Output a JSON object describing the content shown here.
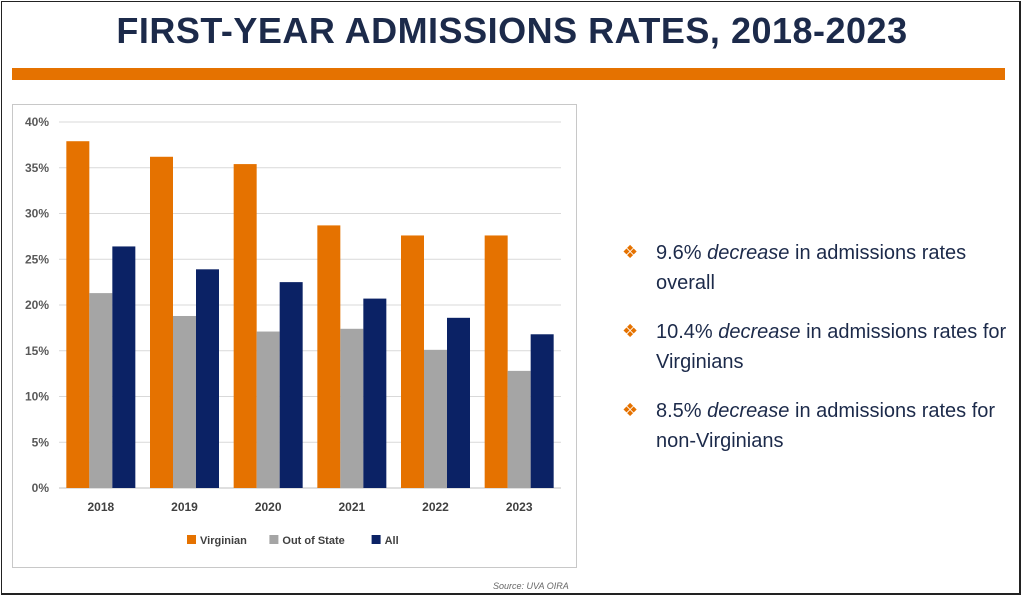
{
  "title": "FIRST-YEAR ADMISSIONS RATES, 2018-2023",
  "source": "Source:  UVA OIRA",
  "bullets": [
    {
      "lead": "9.6% ",
      "emph": "decrease",
      "rest": " in admissions rates overall"
    },
    {
      "lead": "10.4% ",
      "emph": "decrease",
      "rest": " in admissions rates for Virginians"
    },
    {
      "lead": "8.5% ",
      "emph": "decrease",
      "rest": " in admissions rates for non-Virginians"
    }
  ],
  "bullet_icon": "diamond-cluster-icon",
  "colors": {
    "accent": "#e57200",
    "navy": "#0b2265",
    "gray": "#a5a5a5",
    "title": "#1c2a4a"
  },
  "chart_data": {
    "type": "bar",
    "title": "",
    "xlabel": "",
    "ylabel": "",
    "categories": [
      "2018",
      "2019",
      "2020",
      "2021",
      "2022",
      "2023"
    ],
    "series": [
      {
        "name": "Virginian",
        "color": "#e57200",
        "values": [
          37.9,
          36.2,
          35.4,
          28.7,
          27.6,
          27.6
        ]
      },
      {
        "name": "Out of State",
        "color": "#a5a5a5",
        "values": [
          21.3,
          18.8,
          17.1,
          17.4,
          15.1,
          12.8
        ]
      },
      {
        "name": "All",
        "color": "#0b2265",
        "values": [
          26.4,
          23.9,
          22.5,
          20.7,
          18.6,
          16.8
        ]
      }
    ],
    "ylim": [
      0,
      40
    ],
    "yticks": [
      "0%",
      "5%",
      "10%",
      "15%",
      "20%",
      "25%",
      "30%",
      "35%",
      "40%"
    ],
    "grid": true,
    "legend": "bottom"
  }
}
